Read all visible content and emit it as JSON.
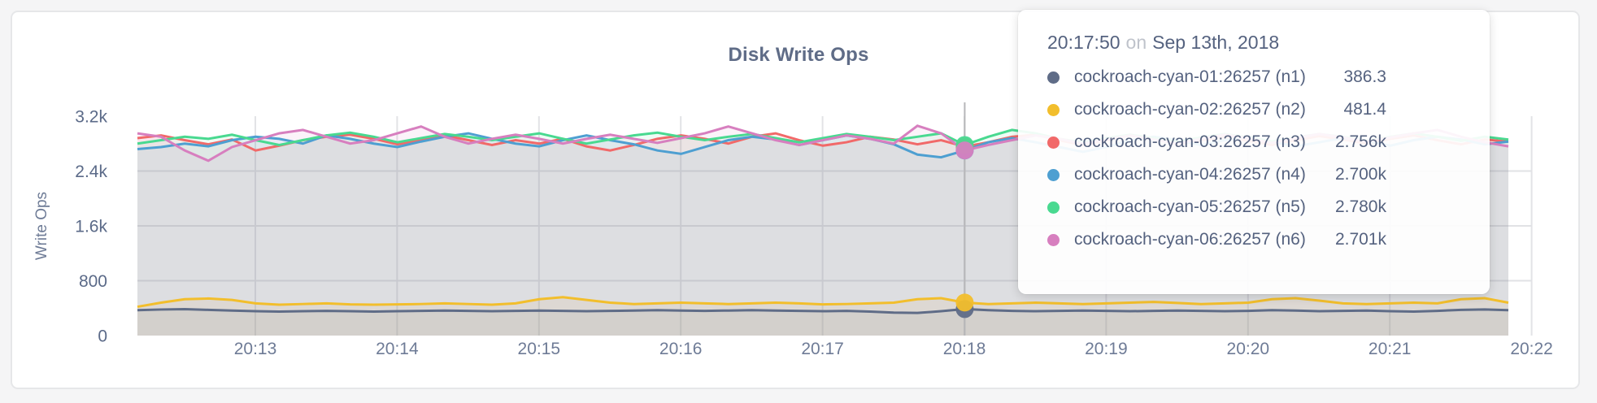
{
  "panel": {
    "title": "Disk Write Ops"
  },
  "chart_data": {
    "type": "line",
    "title": "Disk Write Ops",
    "xlabel": "",
    "ylabel": "Write Ops",
    "ylim": [
      0,
      3200
    ],
    "grid": true,
    "legend_position": "tooltip-overlay",
    "x_ticks": [
      "20:13",
      "20:14",
      "20:15",
      "20:16",
      "20:17",
      "20:18",
      "20:19",
      "20:20",
      "20:21",
      "20:22"
    ],
    "y_ticks": [
      {
        "label": "0",
        "value": 0
      },
      {
        "label": "800",
        "value": 800
      },
      {
        "label": "1.6k",
        "value": 1600
      },
      {
        "label": "2.4k",
        "value": 2400
      },
      {
        "label": "3.2k",
        "value": 3200
      }
    ],
    "sample_interval_seconds": 10,
    "series": [
      {
        "name": "cockroach-cyan-01:26257 (n1)",
        "color": "#5F6C87",
        "values": [
          370,
          380,
          385,
          375,
          365,
          355,
          350,
          355,
          360,
          355,
          350,
          355,
          360,
          365,
          360,
          355,
          360,
          365,
          360,
          355,
          360,
          365,
          370,
          365,
          360,
          365,
          370,
          365,
          360,
          355,
          360,
          350,
          335,
          330,
          355,
          386.3,
          370,
          360,
          355,
          360,
          365,
          360,
          355,
          360,
          365,
          360,
          355,
          360,
          370,
          365,
          355,
          360,
          365,
          355,
          350,
          360,
          375,
          380,
          370
        ]
      },
      {
        "name": "cockroach-cyan-02:26257 (n2)",
        "color": "#F2BE2C",
        "values": [
          420,
          480,
          530,
          540,
          520,
          470,
          450,
          460,
          470,
          455,
          450,
          455,
          460,
          470,
          460,
          450,
          470,
          530,
          560,
          520,
          480,
          460,
          470,
          480,
          470,
          460,
          470,
          480,
          470,
          455,
          460,
          470,
          480,
          530,
          545,
          481.4,
          460,
          470,
          480,
          470,
          460,
          470,
          480,
          490,
          475,
          460,
          470,
          480,
          530,
          545,
          510,
          470,
          460,
          470,
          480,
          470,
          530,
          545,
          480
        ]
      },
      {
        "name": "cockroach-cyan-03:26257 (n3)",
        "color": "#F16969",
        "values": [
          2880,
          2920,
          2850,
          2790,
          2860,
          2700,
          2770,
          2850,
          2900,
          2930,
          2870,
          2790,
          2850,
          2920,
          2850,
          2780,
          2850,
          2800,
          2870,
          2760,
          2700,
          2780,
          2870,
          2920,
          2870,
          2800,
          2900,
          2950,
          2850,
          2770,
          2820,
          2900,
          2860,
          2790,
          2850,
          2756,
          2820,
          2900,
          2930,
          2850,
          2780,
          2850,
          2920,
          2870,
          2790,
          2850,
          2900,
          2840,
          2780,
          2850,
          2910,
          2860,
          2800,
          2870,
          2920,
          2850,
          2790,
          2860,
          2830
        ]
      },
      {
        "name": "cockroach-cyan-04:26257 (n4)",
        "color": "#4E9FD1",
        "values": [
          2720,
          2750,
          2800,
          2760,
          2850,
          2900,
          2870,
          2800,
          2920,
          2870,
          2800,
          2750,
          2830,
          2900,
          2950,
          2870,
          2800,
          2760,
          2850,
          2920,
          2850,
          2790,
          2700,
          2650,
          2750,
          2850,
          2900,
          2860,
          2780,
          2850,
          2920,
          2870,
          2790,
          2640,
          2600,
          2700,
          2820,
          2880,
          2820,
          2750,
          2680,
          2750,
          2850,
          2900,
          2850,
          2780,
          2850,
          2900,
          2830,
          2760,
          2820,
          2880,
          2840,
          2770,
          2850,
          2900,
          2860,
          2790,
          2830
        ]
      },
      {
        "name": "cockroach-cyan-05:26257 (n5)",
        "color": "#49D990",
        "values": [
          2800,
          2850,
          2900,
          2870,
          2930,
          2850,
          2780,
          2850,
          2920,
          2960,
          2900,
          2820,
          2880,
          2940,
          2900,
          2850,
          2900,
          2950,
          2870,
          2800,
          2860,
          2920,
          2960,
          2900,
          2850,
          2900,
          2940,
          2880,
          2820,
          2880,
          2940,
          2900,
          2850,
          2900,
          2950,
          2780,
          2900,
          3000,
          2950,
          2870,
          2820,
          2880,
          2930,
          2880,
          2830,
          2890,
          2940,
          2890,
          2830,
          2890,
          2940,
          2900,
          2840,
          2900,
          2950,
          2900,
          2840,
          2900,
          2860
        ]
      },
      {
        "name": "cockroach-cyan-06:26257 (n6)",
        "color": "#D77FBF",
        "values": [
          2950,
          2900,
          2700,
          2550,
          2750,
          2850,
          2950,
          3000,
          2900,
          2800,
          2850,
          2950,
          3050,
          2900,
          2800,
          2870,
          2930,
          2870,
          2800,
          2870,
          2930,
          2870,
          2810,
          2880,
          2950,
          3050,
          2950,
          2850,
          2780,
          2850,
          2920,
          2870,
          2800,
          3060,
          2950,
          2701,
          2780,
          2850,
          2920,
          2870,
          2800,
          2860,
          2920,
          2860,
          2800,
          2870,
          2930,
          2880,
          2810,
          2880,
          2940,
          2890,
          2830,
          2890,
          2950,
          3000,
          2900,
          2820,
          2760
        ]
      }
    ]
  },
  "tooltip": {
    "time": "20:17:50",
    "conjunction": "on",
    "date": "Sep 13th, 2018",
    "hover_index": 35,
    "rows": [
      {
        "name": "cockroach-cyan-01:26257 (n1)",
        "value": "386.3",
        "color": "#5F6C87"
      },
      {
        "name": "cockroach-cyan-02:26257 (n2)",
        "value": "481.4",
        "color": "#F2BE2C"
      },
      {
        "name": "cockroach-cyan-03:26257 (n3)",
        "value": "2.756k",
        "color": "#F16969"
      },
      {
        "name": "cockroach-cyan-04:26257 (n4)",
        "value": "2.700k",
        "color": "#4E9FD1"
      },
      {
        "name": "cockroach-cyan-05:26257 (n5)",
        "value": "2.780k",
        "color": "#49D990"
      },
      {
        "name": "cockroach-cyan-06:26257 (n6)",
        "value": "2.701k",
        "color": "#D77FBF"
      }
    ]
  }
}
